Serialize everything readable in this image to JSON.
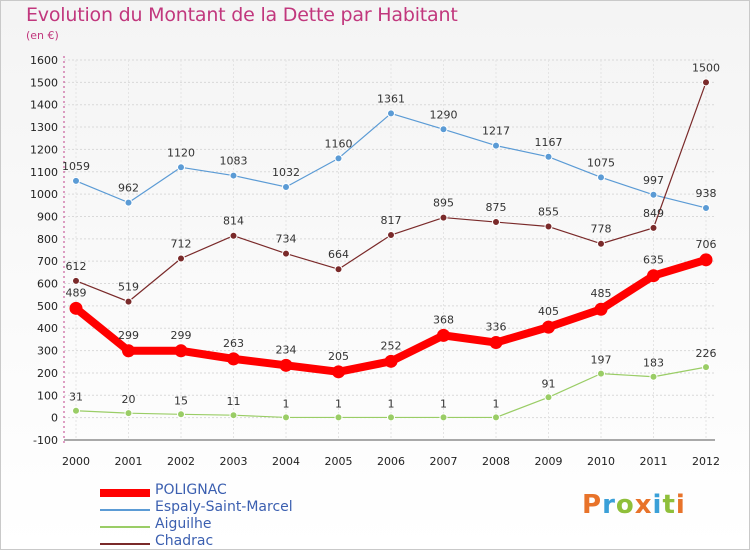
{
  "title": "Evolution du Montant de la Dette par Habitant",
  "subtitle": "(en €)",
  "logo": {
    "text": "Proxiti",
    "letter_colors": [
      "#e8732a",
      "#3aa0d8",
      "#8fbf3a",
      "#e8732a",
      "#3aa0d8",
      "#8fbf3a",
      "#e8732a"
    ]
  },
  "chart_data": {
    "type": "line",
    "title": "Evolution du Montant de la Dette par Habitant",
    "subtitle": "(en €)",
    "xlabel": "",
    "ylabel": "",
    "x": [
      "2000",
      "2001",
      "2002",
      "2003",
      "2004",
      "2005",
      "2006",
      "2007",
      "2008",
      "2009",
      "2010",
      "2011",
      "2012"
    ],
    "ylim": [
      -100,
      1600
    ],
    "yticks": [
      -100,
      0,
      100,
      200,
      300,
      400,
      500,
      600,
      700,
      800,
      900,
      1000,
      1100,
      1200,
      1300,
      1400,
      1500,
      1600
    ],
    "legend_position": "bottom-left",
    "series": [
      {
        "name": "POLIGNAC",
        "color": "#ff0000",
        "values": [
          489,
          299,
          299,
          263,
          234,
          205,
          252,
          368,
          336,
          405,
          485,
          635,
          706
        ]
      },
      {
        "name": "Espaly-Saint-Marcel",
        "color": "#5b9bd5",
        "values": [
          1059,
          962,
          1120,
          1083,
          1032,
          1160,
          1361,
          1290,
          1217,
          1167,
          1075,
          997,
          938
        ]
      },
      {
        "name": "Aiguilhe",
        "color": "#9acd66",
        "values": [
          31,
          20,
          15,
          11,
          1,
          1,
          1,
          1,
          1,
          91,
          197,
          183,
          226
        ]
      },
      {
        "name": "Chadrac",
        "color": "#7a2a2a",
        "values": [
          612,
          519,
          712,
          814,
          734,
          664,
          817,
          895,
          875,
          855,
          778,
          849,
          1500
        ]
      }
    ]
  }
}
